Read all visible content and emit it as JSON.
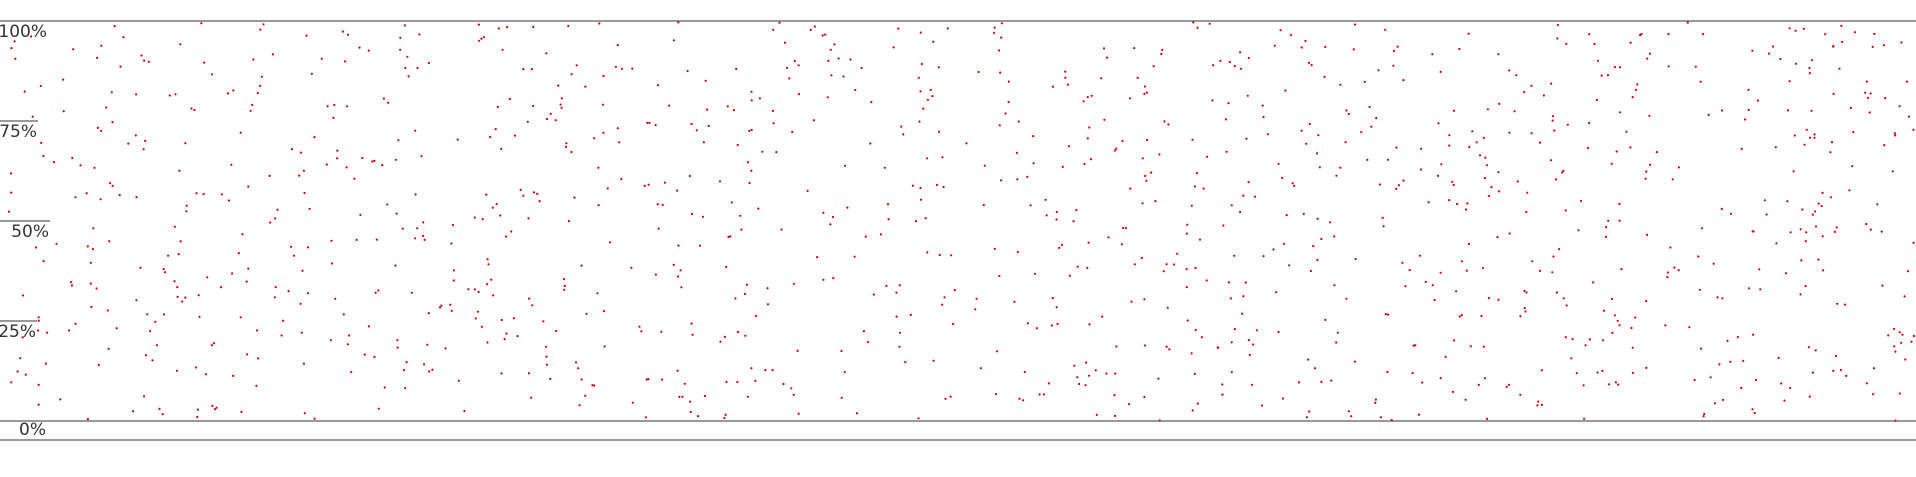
{
  "chart_data": {
    "type": "scatter",
    "title": "",
    "xlabel": "",
    "ylabel": "",
    "ylim": [
      0,
      100
    ],
    "y_ticks": [
      {
        "value": 100,
        "label": "100%"
      },
      {
        "value": 75,
        "label": "75%"
      },
      {
        "value": 50,
        "label": "50%"
      },
      {
        "value": 25,
        "label": "25%"
      },
      {
        "value": 0,
        "label": "0%"
      }
    ],
    "point_count": 1200,
    "random_seed": 1916,
    "point_color": "#d00000",
    "axis_color": "#333333"
  }
}
